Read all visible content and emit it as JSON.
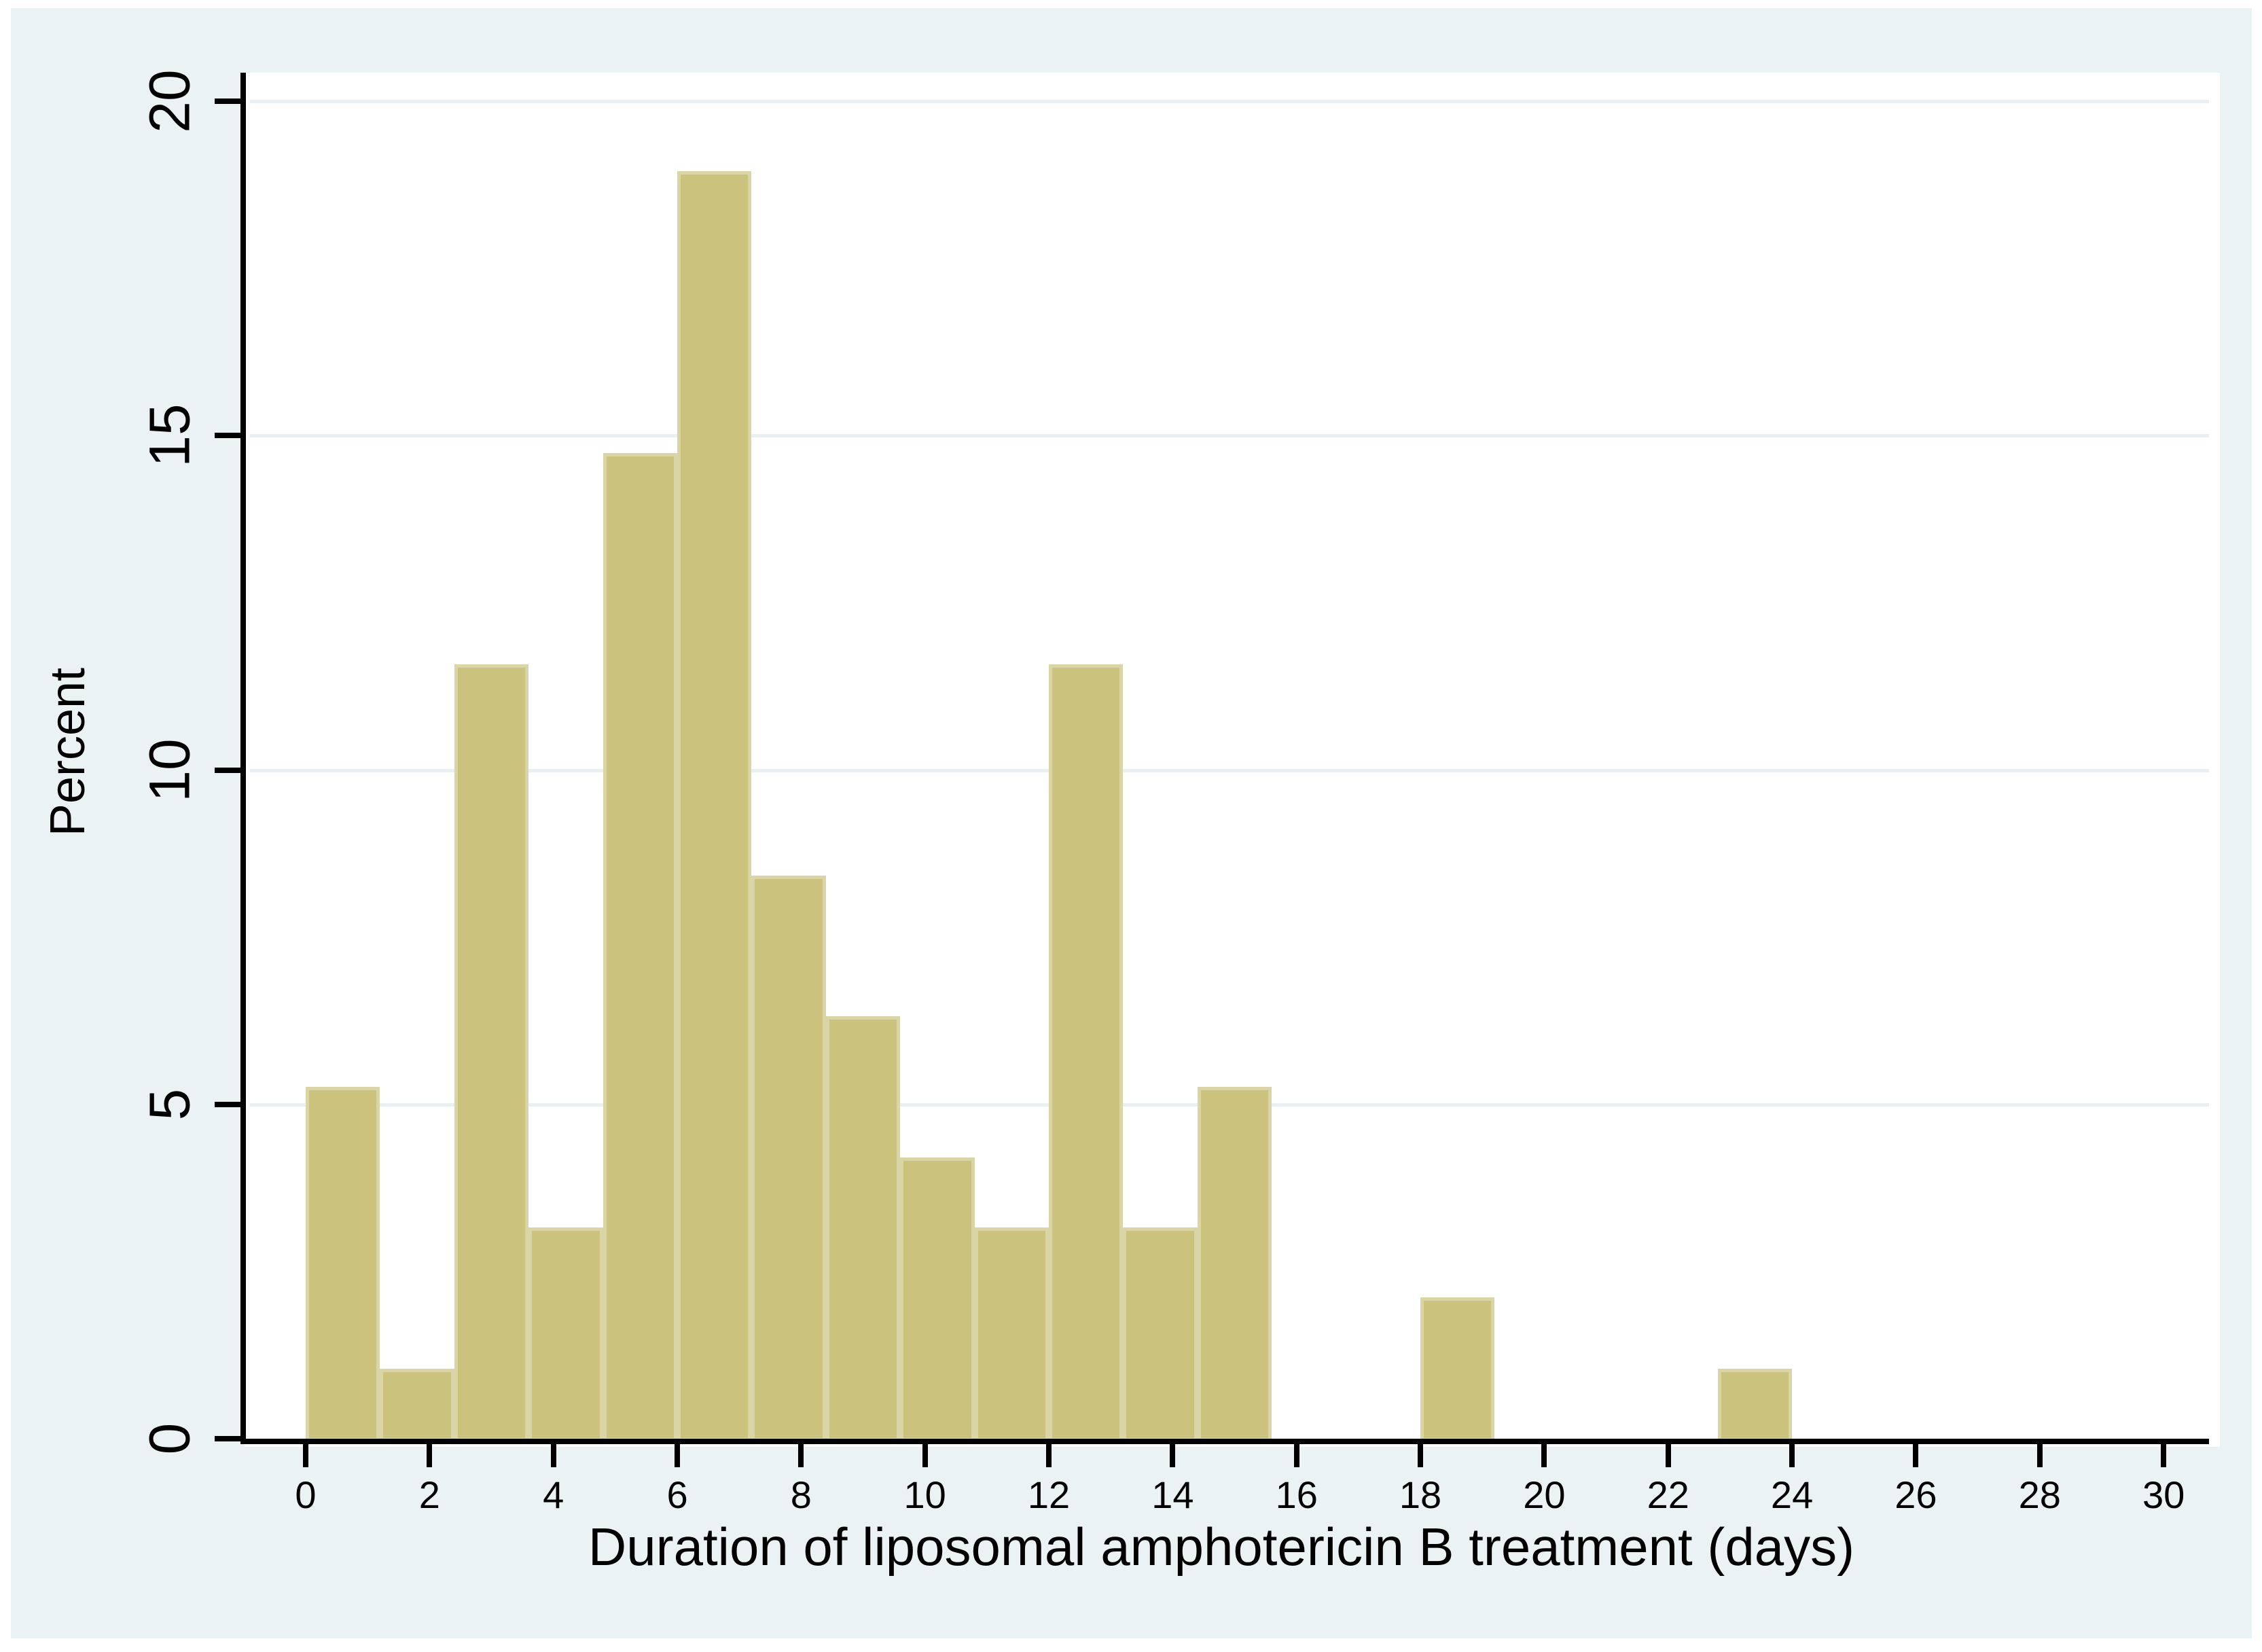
{
  "figure": {
    "title": "",
    "xlabel": "Duration of liposomal amphotericin B treatment (days)",
    "ylabel": "Percent"
  },
  "colors": {
    "canvas_background": "#ffffff",
    "graph_background": "#eaf2f3",
    "plot_background": "#ffffff",
    "gridline": "#e8f0f3",
    "axis": "#000000",
    "text": "#000000",
    "bar_fill": "#cbc37d",
    "bar_edge": "#d9d5a6"
  },
  "chart_data": {
    "type": "bar",
    "subtype": "histogram",
    "title": "",
    "xlabel": "Duration of liposomal amphotericin B treatment (days)",
    "ylabel": "Percent",
    "xlim": [
      0,
      30
    ],
    "ylim": [
      0,
      20
    ],
    "x_ticks": [
      0,
      2,
      4,
      6,
      8,
      10,
      12,
      14,
      16,
      18,
      20,
      22,
      24,
      26,
      28,
      30
    ],
    "y_ticks": [
      0,
      5,
      10,
      15,
      20
    ],
    "grid": "horizontal-only",
    "legend": "none",
    "bin_width_days": 1.2,
    "bins": [
      {
        "start": 0,
        "end": 1.2,
        "percent": 5.26
      },
      {
        "start": 1.2,
        "end": 2.4,
        "percent": 1.05
      },
      {
        "start": 2.4,
        "end": 3.6,
        "percent": 11.58
      },
      {
        "start": 3.6,
        "end": 4.8,
        "percent": 3.16
      },
      {
        "start": 4.8,
        "end": 6.0,
        "percent": 14.74
      },
      {
        "start": 6.0,
        "end": 7.2,
        "percent": 18.95
      },
      {
        "start": 7.2,
        "end": 8.4,
        "percent": 8.42
      },
      {
        "start": 8.4,
        "end": 9.6,
        "percent": 6.32
      },
      {
        "start": 9.6,
        "end": 10.8,
        "percent": 4.21
      },
      {
        "start": 10.8,
        "end": 12.0,
        "percent": 3.16
      },
      {
        "start": 12.0,
        "end": 13.2,
        "percent": 11.58
      },
      {
        "start": 13.2,
        "end": 14.4,
        "percent": 3.16
      },
      {
        "start": 14.4,
        "end": 15.6,
        "percent": 5.26
      },
      {
        "start": 15.6,
        "end": 16.8,
        "percent": 0
      },
      {
        "start": 16.8,
        "end": 18.0,
        "percent": 0
      },
      {
        "start": 18.0,
        "end": 19.2,
        "percent": 2.11
      },
      {
        "start": 19.2,
        "end": 20.4,
        "percent": 0
      },
      {
        "start": 20.4,
        "end": 21.6,
        "percent": 0
      },
      {
        "start": 21.6,
        "end": 22.8,
        "percent": 0
      },
      {
        "start": 22.8,
        "end": 24.0,
        "percent": 1.05
      }
    ]
  }
}
